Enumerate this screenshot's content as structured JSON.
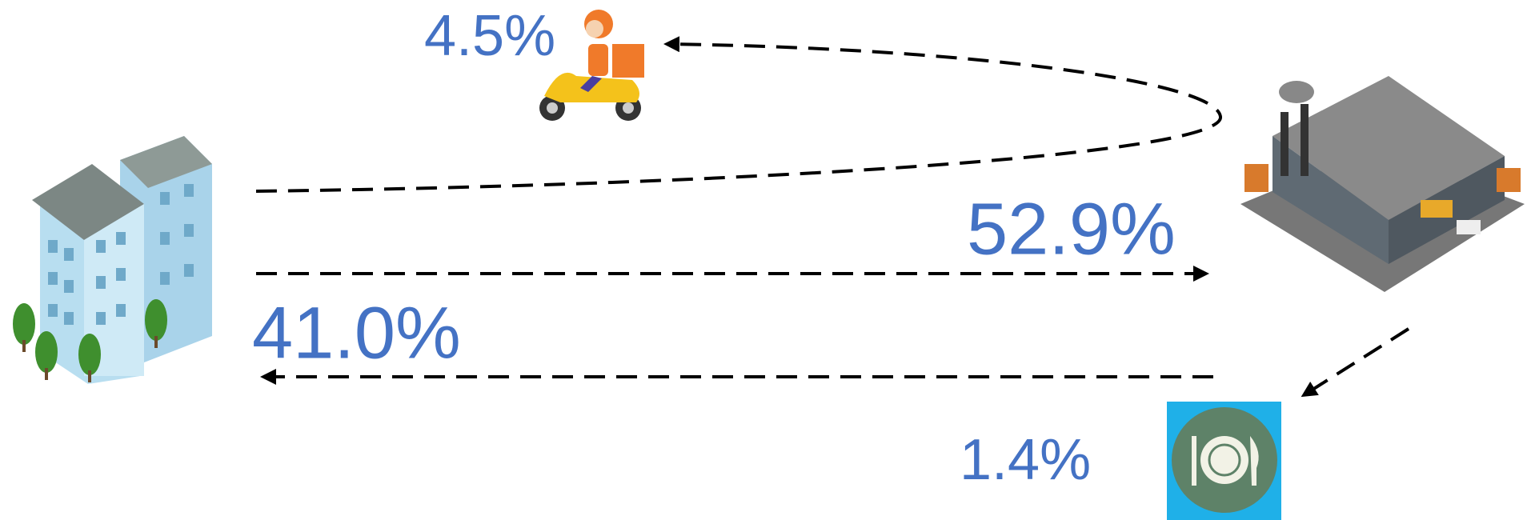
{
  "flows": [
    {
      "label": "4.5%"
    },
    {
      "label": "52.9%"
    },
    {
      "label": "41.0%"
    },
    {
      "label": "1.4%"
    }
  ]
}
